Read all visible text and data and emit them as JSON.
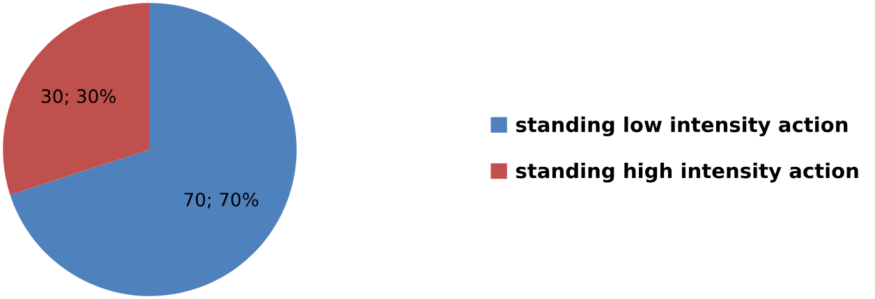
{
  "chart_data": {
    "type": "pie",
    "categories": [
      "standing low intensity action",
      "standing high intensity action"
    ],
    "values": [
      70,
      30
    ],
    "colors": [
      "#4f81bd",
      "#c0504d"
    ],
    "value_labels": [
      "70; 70%",
      "30; 30%"
    ],
    "legend": "right"
  }
}
